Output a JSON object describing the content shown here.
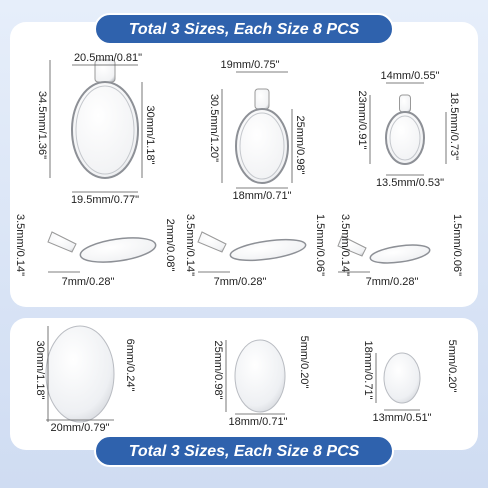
{
  "header": {
    "title": "Total 3 Sizes, Each Size 8 PCS"
  },
  "pendants": [
    {
      "top_width": "20.5mm/0.81\"",
      "height": "34.5mm/1.36\"",
      "inner_height": "30mm/1.18\"",
      "bottom_width": "19.5mm/0.77\""
    },
    {
      "top_width": "19mm/0.75\"",
      "height": "30.5mm/1.20\"",
      "inner_height": "25mm/0.98\"",
      "bottom_width": "18mm/0.71\""
    },
    {
      "top_width": "14mm/0.55\"",
      "height": "23mm/0.91\"",
      "inner_height": "18.5mm/0.73\"",
      "bottom_width": "13.5mm/0.53\""
    }
  ],
  "side_views": [
    {
      "bail": "3.5mm/0.14\"",
      "thickness": "2mm/0.08\"",
      "depth": "7mm/0.28\""
    },
    {
      "bail": "3.5mm/0.14\"",
      "thickness": "1.5mm/0.06\"",
      "depth": "7mm/0.28\""
    },
    {
      "bail": "3.5mm/0.14\"",
      "thickness": "1.5mm/0.06\"",
      "depth": "7mm/0.28\""
    }
  ],
  "cabochons": [
    {
      "height": "30mm/1.18\"",
      "thickness": "6mm/0.24\"",
      "width": "20mm/0.79\""
    },
    {
      "height": "25mm/0.98\"",
      "thickness": "5mm/0.20\"",
      "width": "18mm/0.71\""
    },
    {
      "height": "18mm/0.71\"",
      "thickness": "5mm/0.20\"",
      "width": "13mm/0.51\""
    }
  ],
  "footer": {
    "title": "Total 3 Sizes, Each Size 8 PCS"
  }
}
